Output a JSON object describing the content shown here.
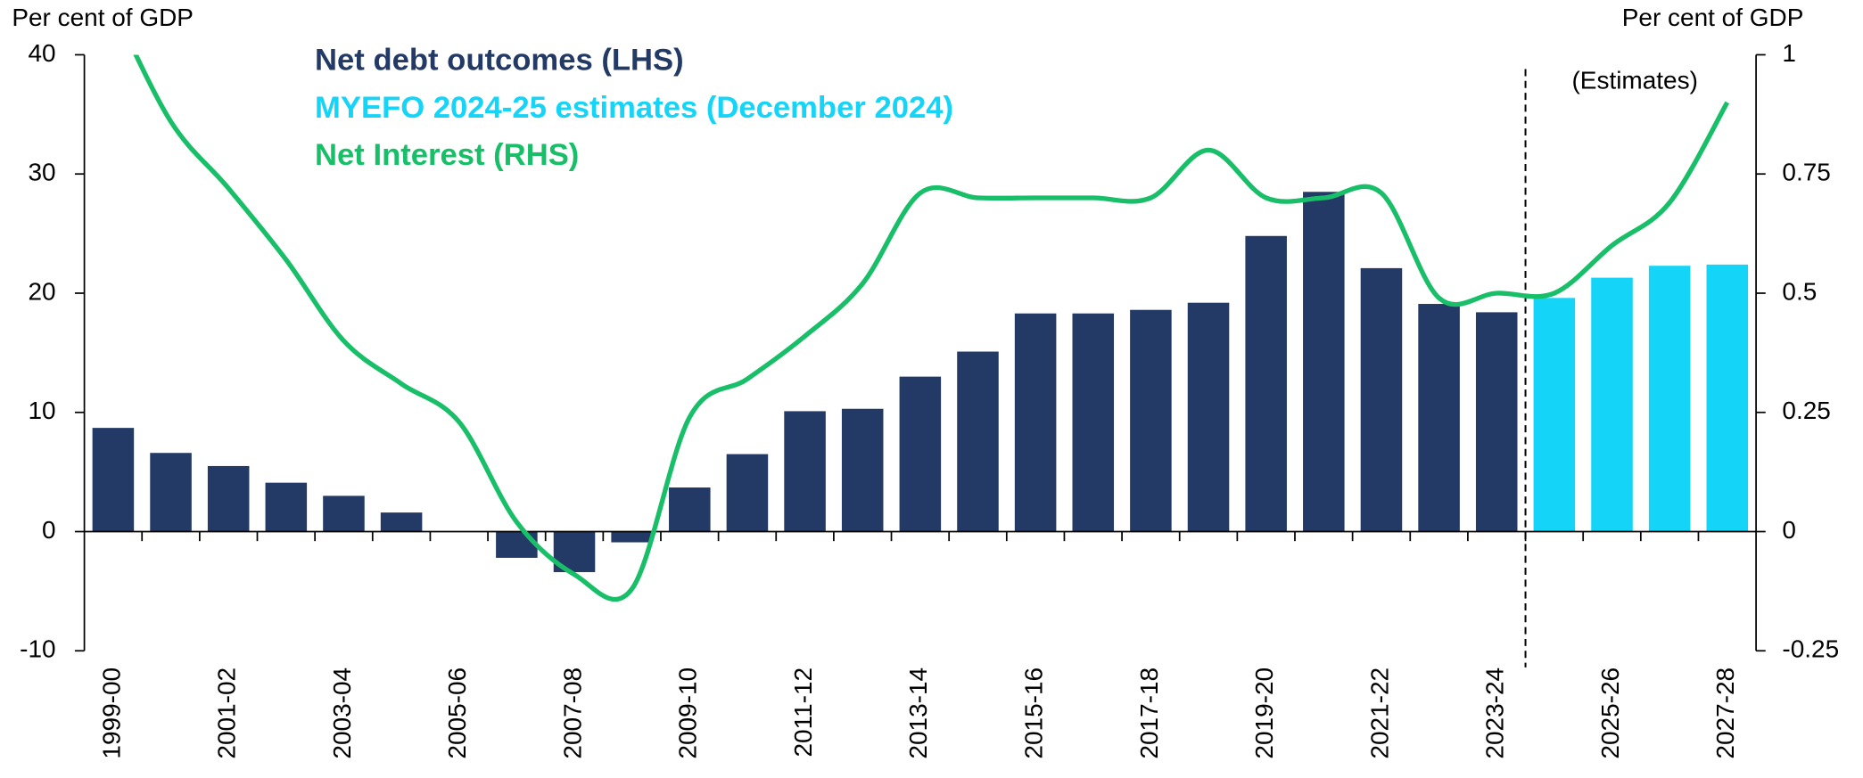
{
  "chart_data": {
    "type": "bar",
    "ylabel": "Per cent of GDP",
    "y2label": "Per cent of GDP",
    "annotation": "(Estimates)",
    "categories": [
      "1999-00",
      null,
      "2001-02",
      null,
      "2003-04",
      null,
      "2005-06",
      null,
      "2007-08",
      null,
      "2009-10",
      null,
      "2011-12",
      null,
      "2013-14",
      null,
      "2015-16",
      null,
      "2017-18",
      null,
      "2019-20",
      null,
      "2021-22",
      null,
      "2023-24",
      null,
      "2025-26",
      null,
      "2027-28"
    ],
    "series": [
      {
        "name": "Net debt outcomes (LHS)",
        "color": "#233a66",
        "type": "bar",
        "values": [
          8.7,
          6.6,
          5.5,
          4.1,
          3.0,
          1.6,
          0,
          -2.2,
          -3.4,
          -0.9,
          3.7,
          6.5,
          10.1,
          10.3,
          13.0,
          15.1,
          18.3,
          18.3,
          18.6,
          19.2,
          24.8,
          28.5,
          22.1,
          19.1,
          18.4,
          null,
          null,
          null,
          null
        ]
      },
      {
        "name": "MYEFO 2024-25 estimates (December 2024)",
        "color": "#14d4f8",
        "type": "bar",
        "values": [
          null,
          null,
          null,
          null,
          null,
          null,
          null,
          null,
          null,
          null,
          null,
          null,
          null,
          null,
          null,
          null,
          null,
          null,
          null,
          null,
          null,
          null,
          null,
          null,
          null,
          19.6,
          21.3,
          22.3,
          22.4
        ]
      },
      {
        "name": "Net Interest (RHS)",
        "color": "#19bf68",
        "type": "line",
        "axis": "y2",
        "values": [
          1.1,
          0.86,
          0.72,
          0.57,
          0.4,
          0.31,
          0.23,
          0.02,
          -0.09,
          -0.12,
          0.24,
          0.32,
          0.41,
          0.52,
          0.71,
          0.7,
          0.7,
          0.7,
          0.7,
          0.8,
          0.7,
          0.7,
          0.71,
          0.49,
          0.5,
          0.5,
          0.6,
          0.69,
          0.9
        ]
      }
    ],
    "ylim": [
      -10,
      40
    ],
    "yticks": [
      -10,
      0,
      10,
      20,
      30,
      40
    ],
    "y2lim": [
      -0.25,
      1
    ],
    "y2ticks": [
      -0.25,
      0,
      0.25,
      0.5,
      0.75,
      1
    ]
  }
}
